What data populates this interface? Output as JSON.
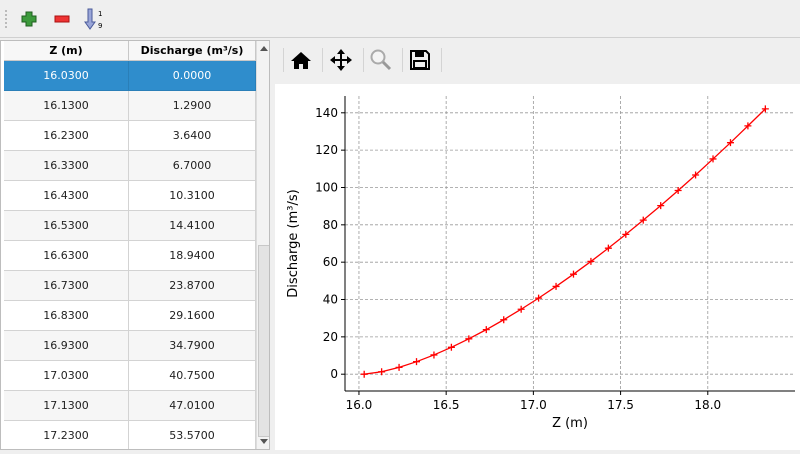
{
  "toolbar": {
    "items": [
      {
        "name": "add-row",
        "icon": "plus-icon"
      },
      {
        "name": "remove-row",
        "icon": "minus-icon"
      },
      {
        "name": "sort",
        "icon": "sort-ascending-icon",
        "label_top": "1",
        "label_bottom": "9"
      }
    ]
  },
  "table": {
    "columns": [
      "Z (m)",
      "Discharge (m³/s)"
    ],
    "selected_row": 0,
    "rows": [
      [
        "16.0300",
        "0.0000"
      ],
      [
        "16.1300",
        "1.2900"
      ],
      [
        "16.2300",
        "3.6400"
      ],
      [
        "16.3300",
        "6.7000"
      ],
      [
        "16.4300",
        "10.3100"
      ],
      [
        "16.5300",
        "14.4100"
      ],
      [
        "16.6300",
        "18.9400"
      ],
      [
        "16.7300",
        "23.8700"
      ],
      [
        "16.8300",
        "29.1600"
      ],
      [
        "16.9300",
        "34.7900"
      ],
      [
        "17.0300",
        "40.7500"
      ],
      [
        "17.1300",
        "47.0100"
      ],
      [
        "17.2300",
        "53.5700"
      ]
    ]
  },
  "plot_toolbar": {
    "buttons": [
      {
        "name": "home",
        "icon": "home-icon"
      },
      {
        "name": "pan",
        "icon": "move-icon"
      },
      {
        "name": "zoom",
        "icon": "magnifier-icon",
        "enabled": false
      },
      {
        "name": "save",
        "icon": "floppy-disk-icon"
      }
    ]
  },
  "chart_data": {
    "type": "line",
    "xlabel": "Z (m)",
    "ylabel": "Discharge (m³/s)",
    "xlim": [
      15.92,
      18.5
    ],
    "ylim": [
      -9,
      149
    ],
    "xticks": [
      16.0,
      16.5,
      17.0,
      17.5,
      18.0
    ],
    "xtick_labels": [
      "16.0",
      "16.5",
      "17.0",
      "17.5",
      "18.0"
    ],
    "yticks": [
      0,
      20,
      40,
      60,
      80,
      100,
      120,
      140
    ],
    "ytick_labels": [
      "0",
      "20",
      "40",
      "60",
      "80",
      "100",
      "120",
      "140"
    ],
    "grid": true,
    "color": "#ff0000",
    "marker": "+",
    "x": [
      16.03,
      16.13,
      16.23,
      16.33,
      16.43,
      16.53,
      16.63,
      16.73,
      16.83,
      16.93,
      17.03,
      17.13,
      17.23,
      17.33,
      17.43,
      17.53,
      17.63,
      17.73,
      17.83,
      17.93,
      18.03,
      18.13,
      18.23,
      18.33
    ],
    "y": [
      0,
      1.29,
      3.64,
      6.7,
      10.31,
      14.41,
      18.94,
      23.87,
      29.16,
      34.79,
      40.75,
      47.01,
      53.57,
      60.4,
      67.5,
      74.9,
      82.5,
      90.3,
      98.4,
      106.7,
      115.3,
      124.0,
      133.0,
      142.1
    ]
  }
}
